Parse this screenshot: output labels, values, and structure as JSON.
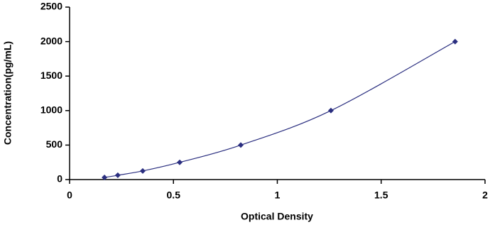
{
  "chart_data": {
    "type": "scatter",
    "line": "smooth",
    "x_label": "Optical Density",
    "y_label": "Concentration(pg/mL)",
    "x": [
      0.168,
      0.232,
      0.352,
      0.53,
      0.824,
      1.258,
      1.856
    ],
    "values": [
      31.25,
      62.5,
      125,
      250,
      500,
      1000,
      2000
    ],
    "color": "#2b2f80",
    "xlim": [
      0,
      2
    ],
    "xticks": [
      0,
      0.5,
      1,
      1.5,
      2
    ],
    "ylim": [
      0,
      2500
    ],
    "yticks": [
      0,
      500,
      1000,
      1500,
      2000,
      2500
    ],
    "grid": false
  }
}
